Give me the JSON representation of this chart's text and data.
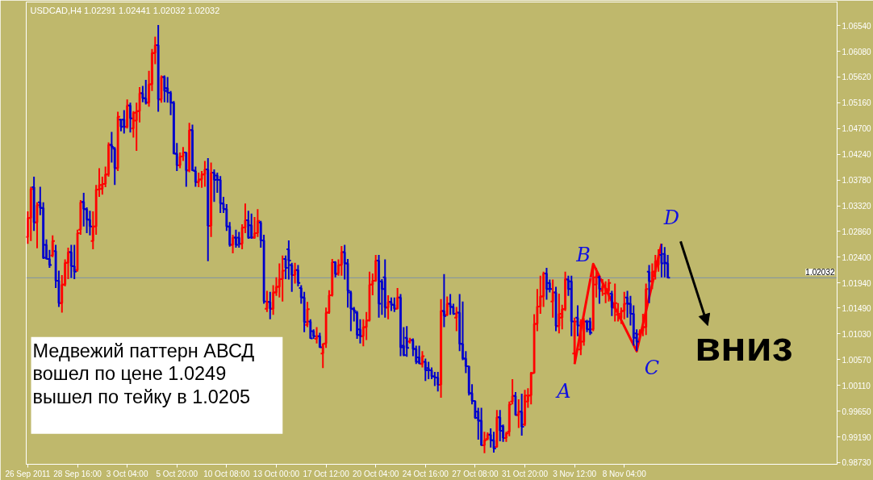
{
  "chart_data": {
    "type": "candlestick",
    "title": "USDCAD,H4 1.02291 1.02441 1.02032 1.02032",
    "categories": [
      "26 Sep 2011",
      null,
      null,
      null,
      null,
      null,
      null,
      null,
      null,
      null,
      null,
      null,
      null,
      null,
      null,
      null,
      "28 Sep 16:00",
      null,
      null,
      null,
      null,
      null,
      null,
      null,
      null,
      null,
      null,
      null,
      null,
      null,
      null,
      null,
      "3 Oct 04:00",
      null,
      null,
      null,
      null,
      null,
      null,
      null,
      null,
      null,
      null,
      null,
      null,
      null,
      null,
      null,
      "5 Oct 20:00",
      null,
      null,
      null,
      null,
      null,
      null,
      null,
      null,
      null,
      null,
      null,
      null,
      null,
      null,
      null,
      "10 Oct 08:00",
      null,
      null,
      null,
      null,
      null,
      null,
      null,
      null,
      null,
      null,
      null,
      null,
      null,
      null,
      null,
      "13 Oct 00:00",
      null,
      null,
      null,
      null,
      null,
      null,
      null,
      null,
      null,
      null,
      null,
      null,
      null,
      null,
      null,
      "17 Oct 12:00",
      null,
      null,
      null,
      null,
      null,
      null,
      null,
      null,
      null,
      null,
      null,
      null,
      null,
      null,
      null,
      "20 Oct 04:00",
      null,
      null,
      null,
      null,
      null,
      null,
      null,
      null,
      null,
      null,
      null,
      null,
      null,
      null,
      null,
      "24 Oct 16:00",
      null,
      null,
      null,
      null,
      null,
      null,
      null,
      null,
      null,
      null,
      null,
      null,
      null,
      null,
      null,
      "27 Oct 08:00",
      null,
      null,
      null,
      null,
      null,
      null,
      null,
      null,
      null,
      null,
      null,
      null,
      null,
      null,
      null,
      "31 Oct 20:00",
      null,
      null,
      null,
      null,
      null,
      null,
      null,
      null,
      null,
      null,
      null,
      null,
      null,
      null,
      null,
      "3 Nov 12:00",
      null,
      null,
      null,
      null,
      null,
      null,
      null,
      null,
      null,
      null,
      null,
      null,
      null,
      null,
      null,
      "8 Nov 04:00",
      null,
      null,
      null,
      null,
      null,
      null,
      null,
      null,
      null,
      null,
      null,
      null,
      null,
      null,
      null,
      null,
      null,
      null,
      null,
      null,
      null,
      null,
      null,
      null,
      null,
      null,
      null,
      null,
      null,
      null,
      null,
      null,
      null,
      null,
      null,
      null,
      null,
      null,
      null,
      null,
      null,
      null,
      null,
      null,
      null,
      null,
      null,
      null,
      null,
      null,
      null,
      null,
      null,
      null,
      null,
      null,
      null,
      null,
      null,
      null,
      null,
      null,
      null,
      null,
      null,
      null,
      null,
      null
    ],
    "ohlc": [
      [
        1.0276,
        1.0322,
        1.0264,
        1.031
      ],
      [
        1.031,
        1.0366,
        1.0269,
        1.0362
      ],
      [
        1.0365,
        1.0384,
        1.0287,
        1.0302
      ],
      [
        1.0302,
        1.0338,
        1.0256,
        1.0333
      ],
      [
        1.0338,
        1.0366,
        1.0315,
        1.0328
      ],
      [
        1.0328,
        1.0338,
        1.0237,
        1.0239
      ],
      [
        1.0262,
        1.0272,
        1.0236,
        1.0237
      ],
      [
        1.0237,
        1.0253,
        1.0221,
        1.0226
      ],
      [
        1.0243,
        1.0279,
        1.024,
        1.0269
      ],
      [
        1.0251,
        1.0262,
        1.0185,
        1.0198
      ],
      [
        1.0198,
        1.0216,
        1.0151,
        1.0158
      ],
      [
        1.0158,
        1.0208,
        1.0141,
        1.0191
      ],
      [
        1.0191,
        1.0236,
        1.0188,
        1.023
      ],
      [
        1.023,
        1.0257,
        1.0201,
        1.0249
      ],
      [
        1.0249,
        1.0262,
        1.0203,
        1.0224
      ],
      [
        1.0224,
        1.0262,
        1.0201,
        1.0214
      ],
      [
        1.0217,
        1.0289,
        1.0214,
        1.0283
      ],
      [
        1.0289,
        1.0342,
        1.028,
        1.0338
      ],
      [
        1.0339,
        1.0355,
        1.0295,
        1.0326
      ],
      [
        1.0326,
        1.0329,
        1.0283,
        1.0307
      ],
      [
        1.0307,
        1.0323,
        1.0279,
        1.0295
      ],
      [
        1.0269,
        1.0322,
        1.0254,
        1.0295
      ],
      [
        1.0295,
        1.0369,
        1.028,
        1.0361
      ],
      [
        1.0361,
        1.0399,
        1.0348,
        1.0369
      ],
      [
        1.0362,
        1.0384,
        1.0352,
        1.0371
      ],
      [
        1.0371,
        1.0402,
        1.0365,
        1.0388
      ],
      [
        1.0388,
        1.0445,
        1.0384,
        1.0441
      ],
      [
        1.0441,
        1.0464,
        1.0409,
        1.0437
      ],
      [
        1.0434,
        1.0437,
        1.0369,
        1.0399
      ],
      [
        1.0399,
        1.05,
        1.0394,
        1.0491
      ],
      [
        1.0486,
        1.0487,
        1.0465,
        1.0473
      ],
      [
        1.0486,
        1.0503,
        1.0461,
        1.0473
      ],
      [
        1.0473,
        1.0522,
        1.047,
        1.0511
      ],
      [
        1.0511,
        1.0516,
        1.0463,
        1.0488
      ],
      [
        1.047,
        1.0501,
        1.0454,
        1.0498
      ],
      [
        1.0484,
        1.0516,
        1.043,
        1.0501
      ],
      [
        1.0501,
        1.0544,
        1.0481,
        1.0533
      ],
      [
        1.0533,
        1.0546,
        1.0517,
        1.0524
      ],
      [
        1.0524,
        1.0557,
        1.0513,
        1.0516
      ],
      [
        1.0516,
        1.0573,
        1.0509,
        1.0549
      ],
      [
        1.0549,
        1.0612,
        1.0537,
        1.0605
      ],
      [
        1.0605,
        1.0634,
        1.0585,
        1.0619
      ],
      [
        1.0619,
        1.0655,
        1.05,
        1.0522
      ],
      [
        1.0522,
        1.0565,
        1.0516,
        1.0562
      ],
      [
        1.0562,
        1.0565,
        1.0517,
        1.0537
      ],
      [
        1.0542,
        1.0562,
        1.0516,
        1.0534
      ],
      [
        1.0534,
        1.0537,
        1.0494,
        1.0516
      ],
      [
        1.0516,
        1.0519,
        1.0424,
        1.0425
      ],
      [
        1.0425,
        1.0444,
        1.0394,
        1.0404
      ],
      [
        1.0404,
        1.0427,
        1.0399,
        1.042
      ],
      [
        1.042,
        1.0437,
        1.0412,
        1.0427
      ],
      [
        1.0427,
        1.0428,
        1.0366,
        1.0395
      ],
      [
        1.0395,
        1.048,
        1.0392,
        1.0467
      ],
      [
        1.0467,
        1.0477,
        1.0394,
        1.0395
      ],
      [
        1.0394,
        1.0402,
        1.0366,
        1.0374
      ],
      [
        1.0374,
        1.0391,
        1.0365,
        1.0379
      ],
      [
        1.0379,
        1.0394,
        1.0364,
        1.0388
      ],
      [
        1.0388,
        1.0412,
        1.0366,
        1.0397
      ],
      [
        1.0397,
        1.0417,
        1.0233,
        1.0296
      ],
      [
        1.0296,
        1.0409,
        1.0276,
        1.0391
      ],
      [
        1.0391,
        1.0397,
        1.0339,
        1.0378
      ],
      [
        1.0386,
        1.0391,
        1.0355,
        1.0378
      ],
      [
        1.0378,
        1.0385,
        1.0319,
        1.0336
      ],
      [
        1.0336,
        1.0348,
        1.0319,
        1.0326
      ],
      [
        1.0326,
        1.0335,
        1.0287,
        1.0295
      ],
      [
        1.0295,
        1.0303,
        1.0259,
        1.0262
      ],
      [
        1.0262,
        1.028,
        1.0247,
        1.0275
      ],
      [
        1.0275,
        1.0289,
        1.0257,
        1.0262
      ],
      [
        1.0275,
        1.0285,
        1.0257,
        1.0264
      ],
      [
        1.0264,
        1.0299,
        1.0254,
        1.0293
      ],
      [
        1.0293,
        1.0336,
        1.0283,
        1.0306
      ],
      [
        1.0306,
        1.0323,
        1.0273,
        1.0275
      ],
      [
        1.0297,
        1.0318,
        1.0273,
        1.0275
      ],
      [
        1.0275,
        1.0312,
        1.0273,
        1.0283
      ],
      [
        1.0283,
        1.0326,
        1.0276,
        1.0305
      ],
      [
        1.0302,
        1.0305,
        1.0257,
        1.027
      ],
      [
        1.027,
        1.028,
        1.0157,
        1.0161
      ],
      [
        1.0148,
        1.018,
        1.0142,
        1.016
      ],
      [
        1.016,
        1.0178,
        1.0129,
        1.0148
      ],
      [
        1.0148,
        1.019,
        1.0137,
        1.0177
      ],
      [
        1.0177,
        1.0204,
        1.0171,
        1.0187
      ],
      [
        1.0187,
        1.0229,
        1.0168,
        1.0201
      ],
      [
        1.0201,
        1.0243,
        1.0161,
        1.0216
      ],
      [
        1.0237,
        1.0243,
        1.0201,
        1.0221
      ],
      [
        1.0254,
        1.027,
        1.02,
        1.0234
      ],
      [
        1.0226,
        1.023,
        1.0178,
        1.0208
      ],
      [
        1.0208,
        1.023,
        1.0193,
        1.0217
      ],
      [
        1.0217,
        1.0226,
        1.0188,
        1.0194
      ],
      [
        1.0185,
        1.019,
        1.0157,
        1.0168
      ],
      [
        1.0168,
        1.0178,
        1.0106,
        1.0124
      ],
      [
        1.0119,
        1.016,
        1.0115,
        1.0147
      ],
      [
        1.0125,
        1.0129,
        1.0094,
        1.0095
      ],
      [
        1.0108,
        1.0111,
        1.0094,
        1.0099
      ],
      [
        1.0094,
        1.0115,
        1.0086,
        1.0099
      ],
      [
        1.0099,
        1.0105,
        1.0078,
        1.0079
      ],
      [
        1.0068,
        1.0086,
        1.0042,
        1.0085
      ],
      [
        1.0086,
        1.015,
        1.0078,
        1.0141
      ],
      [
        1.0141,
        1.0181,
        1.0139,
        1.0172
      ],
      [
        1.0172,
        1.0237,
        1.017,
        1.0231
      ],
      [
        1.0231,
        1.0233,
        1.0204,
        1.021
      ],
      [
        1.0211,
        1.0236,
        1.0207,
        1.0226
      ],
      [
        1.0226,
        1.026,
        1.0207,
        1.0249
      ],
      [
        1.0249,
        1.0262,
        1.02,
        1.0229
      ],
      [
        1.0229,
        1.0237,
        1.015,
        1.018
      ],
      [
        1.0177,
        1.018,
        1.0108,
        1.0148
      ],
      [
        1.0148,
        1.0151,
        1.0125,
        1.0144
      ],
      [
        1.0141,
        1.0144,
        1.0094,
        1.0101
      ],
      [
        1.0111,
        1.0129,
        1.0086,
        1.0099
      ],
      [
        1.0099,
        1.0129,
        1.0081,
        1.0115
      ],
      [
        1.0115,
        1.0142,
        1.0092,
        1.0127
      ],
      [
        1.0127,
        1.0214,
        1.0125,
        1.0191
      ],
      [
        1.0191,
        1.0211,
        1.0172,
        1.0198
      ],
      [
        1.0198,
        1.0244,
        1.0196,
        1.0234
      ],
      [
        1.0234,
        1.0244,
        1.0132,
        1.0157
      ],
      [
        1.0197,
        1.0201,
        1.0137,
        1.0183
      ],
      [
        1.0204,
        1.0236,
        1.0132,
        1.015
      ],
      [
        1.015,
        1.0172,
        1.0129,
        1.016
      ],
      [
        1.016,
        1.0168,
        1.0144,
        1.0155
      ],
      [
        1.0155,
        1.0168,
        1.0142,
        1.0148
      ],
      [
        1.0148,
        1.0185,
        1.0147,
        1.0168
      ],
      [
        1.0168,
        1.0174,
        1.0063,
        1.0079
      ],
      [
        1.0082,
        1.0115,
        1.0063,
        1.0065
      ],
      [
        1.0096,
        1.0117,
        1.0062,
        1.0078
      ],
      [
        1.0089,
        1.0096,
        1.0086,
        1.0092
      ],
      [
        1.0092,
        1.0095,
        1.0063,
        1.0076
      ],
      [
        1.0076,
        1.0082,
        1.0049,
        1.0053
      ],
      [
        1.0061,
        1.0082,
        1.0049,
        1.005
      ],
      [
        1.0049,
        1.0072,
        1.0043,
        1.0063
      ],
      [
        1.0053,
        1.0059,
        1.0019,
        1.0038
      ],
      [
        1.0042,
        1.0053,
        1.0022,
        1.0038
      ],
      [
        1.0038,
        1.0043,
        1.0022,
        1.0027
      ],
      [
        1.0027,
        1.0035,
        1.001,
        1.0025
      ],
      [
        1.0025,
        1.0035,
        1.0,
        1.0012
      ],
      [
        1.0012,
        1.0165,
        0.9989,
        1.0144
      ],
      [
        1.0144,
        1.021,
        1.0115,
        1.0135
      ],
      [
        1.0137,
        1.017,
        1.0135,
        1.0157
      ],
      [
        1.0157,
        1.0174,
        1.0137,
        1.0151
      ],
      [
        1.0151,
        1.0157,
        1.0137,
        1.0139
      ],
      [
        1.0132,
        1.0151,
        1.0108,
        1.0141
      ],
      [
        1.0141,
        1.0174,
        1.0072,
        1.0085
      ],
      [
        1.0085,
        1.0161,
        1.0056,
        1.0059
      ],
      [
        1.0059,
        1.0072,
        1.0033,
        1.0045
      ],
      [
        1.0045,
        1.0046,
        0.9993,
        0.9997
      ],
      [
        0.9997,
        1.0013,
        0.9977,
        0.9983
      ],
      [
        0.9983,
        0.9984,
        0.9951,
        0.9953
      ],
      [
        0.9964,
        0.9971,
        0.9914,
        0.9948
      ],
      [
        0.9948,
        0.9971,
        0.9903,
        0.9904
      ],
      [
        0.9904,
        0.9928,
        0.989,
        0.9913
      ],
      [
        0.9915,
        0.9927,
        0.9913,
        0.9923
      ],
      [
        0.9923,
        0.9934,
        0.99,
        0.9913
      ],
      [
        0.9913,
        0.9928,
        0.9891,
        0.9898
      ],
      [
        0.9901,
        0.9967,
        0.99,
        0.9954
      ],
      [
        0.9954,
        0.9967,
        0.9911,
        0.993
      ],
      [
        0.9938,
        0.9941,
        0.991,
        0.9917
      ],
      [
        0.9917,
        0.9928,
        0.991,
        0.9925
      ],
      [
        0.9928,
        0.9982,
        0.992,
        0.9977
      ],
      [
        0.9982,
        1.0022,
        0.9977,
        0.9992
      ],
      [
        0.9992,
        0.9999,
        0.9957,
        0.9958
      ],
      [
        0.9958,
        0.9986,
        0.9935,
        0.9964
      ],
      [
        0.9964,
        0.9996,
        0.9921,
        0.9937
      ],
      [
        0.9941,
        1.0003,
        0.9938,
        0.9993
      ],
      [
        0.9982,
        1.0006,
        0.9971,
        0.9993
      ],
      [
        0.9993,
        1.0035,
        0.9977,
        1.0033
      ],
      [
        1.0033,
        1.0138,
        1.0032,
        1.0121
      ],
      [
        1.0121,
        1.0183,
        1.0108,
        1.0152
      ],
      [
        1.0152,
        1.0207,
        1.0139,
        1.017
      ],
      [
        1.017,
        1.0214,
        1.0151,
        1.0211
      ],
      [
        1.0211,
        1.0221,
        1.0164,
        1.0183
      ],
      [
        1.0194,
        1.02,
        1.0177,
        1.0183
      ],
      [
        1.0161,
        1.02,
        1.0132,
        1.0177
      ],
      [
        1.0177,
        1.0187,
        1.0108,
        1.0117
      ],
      [
        1.0117,
        1.0175,
        1.0104,
        1.0139
      ],
      [
        1.0132,
        1.0155,
        1.0111,
        1.0147
      ],
      [
        1.0147,
        1.0214,
        1.0144,
        1.0201
      ],
      [
        1.02,
        1.0207,
        1.0171,
        1.0183
      ],
      [
        1.0197,
        1.0207,
        1.0099,
        1.0125
      ],
      [
        1.0068,
        1.0132,
        1.0049,
        1.0125
      ],
      [
        1.0132,
        1.0154,
        1.0099,
        1.0118
      ],
      [
        1.0075,
        1.0129,
        1.0065,
        1.0125
      ],
      [
        1.0089,
        1.0131,
        1.0082,
        1.0125
      ],
      [
        1.0125,
        1.0128,
        1.0106,
        1.0111
      ],
      [
        1.0125,
        1.0132,
        1.0101,
        1.0105
      ],
      [
        1.0111,
        1.0228,
        1.0108,
        1.0204
      ],
      [
        1.0191,
        1.0221,
        1.0168,
        1.0207
      ],
      [
        1.0204,
        1.0207,
        1.0157,
        1.0183
      ],
      [
        1.018,
        1.0201,
        1.0171,
        1.0188
      ],
      [
        1.0175,
        1.0197,
        1.0158,
        1.0183
      ],
      [
        1.018,
        1.0201,
        1.0161,
        1.0194
      ],
      [
        1.0175,
        1.018,
        1.0135,
        1.015
      ],
      [
        1.015,
        1.0193,
        1.0125,
        1.0158
      ],
      [
        1.0137,
        1.0158,
        1.0125,
        1.0139
      ],
      [
        1.0131,
        1.015,
        1.0121,
        1.0144
      ],
      [
        1.0144,
        1.0178,
        1.0129,
        1.0157
      ],
      [
        1.0168,
        1.018,
        1.0132,
        1.0157
      ],
      [
        1.0157,
        1.0171,
        1.0118,
        1.0139
      ],
      [
        1.0139,
        1.0154,
        1.0082,
        1.0096
      ],
      [
        1.0104,
        1.0111,
        1.0072,
        1.0089
      ],
      [
        1.0102,
        1.0111,
        1.0099,
        1.0108
      ],
      [
        1.0108,
        1.0139,
        1.0099,
        1.0115
      ],
      [
        1.0115,
        1.0193,
        1.0101,
        1.0183
      ],
      [
        1.0214,
        1.0226,
        1.0158,
        1.0197
      ],
      [
        1.0197,
        1.0229,
        1.0183,
        1.0214
      ],
      [
        1.0214,
        1.0244,
        1.02,
        1.0233
      ],
      [
        1.0226,
        1.0254,
        1.0214,
        1.0244
      ],
      [
        1.0244,
        1.0264,
        1.0204,
        1.0229
      ],
      [
        1.0246,
        1.0258,
        1.0204,
        1.023
      ],
      [
        1.02291,
        1.02441,
        1.02032,
        1.02032
      ],
      null,
      null,
      null,
      null,
      null,
      null,
      null,
      null,
      null,
      null,
      null,
      null,
      null,
      null,
      null,
      null,
      null,
      null,
      null,
      null,
      null,
      null,
      null,
      null,
      null,
      null,
      null,
      null,
      null,
      null,
      null,
      null,
      null,
      null,
      null,
      null,
      null,
      null,
      null,
      null,
      null,
      null,
      null,
      null,
      null,
      null,
      null,
      null,
      null,
      null,
      null,
      null,
      null,
      null
    ],
    "colors": [
      "#ff0000",
      "#ff0000",
      "#0000cc",
      "#ff0000",
      "#0000cc",
      "#0000cc",
      "#0000cc",
      "#0000cc",
      "#ff0000",
      "#0000cc",
      "#0000cc",
      "#ff0000",
      "#ff0000",
      "#ff0000",
      "#0000cc",
      "#0000cc",
      "#ff0000",
      "#ff0000",
      "#0000cc",
      "#0000cc",
      "#0000cc",
      "#ff0000",
      "#ff0000",
      "#ff0000",
      "#ff0000",
      "#ff0000",
      "#ff0000",
      "#0000cc",
      "#0000cc",
      "#ff0000",
      "#0000cc",
      "#0000cc",
      "#ff0000",
      "#0000cc",
      "#ff0000",
      "#ff0000",
      "#ff0000",
      "#0000cc",
      "#0000cc",
      "#ff0000",
      "#ff0000",
      "#ff0000",
      "#0000cc",
      "#ff0000",
      "#0000cc",
      "#0000cc",
      "#0000cc",
      "#0000cc",
      "#0000cc",
      "#ff0000",
      "#ff0000",
      "#0000cc",
      "#ff0000",
      "#0000cc",
      "#0000cc",
      "#ff0000",
      "#ff0000",
      "#ff0000",
      "#0000cc",
      "#ff0000",
      "#0000cc",
      "#0000cc",
      "#0000cc",
      "#0000cc",
      "#0000cc",
      "#0000cc",
      "#ff0000",
      "#0000cc",
      "#0000cc",
      "#ff0000",
      "#ff0000",
      "#0000cc",
      "#0000cc",
      "#ff0000",
      "#ff0000",
      "#0000cc",
      "#0000cc",
      "#ff0000",
      "#0000cc",
      "#ff0000",
      "#ff0000",
      "#ff0000",
      "#ff0000",
      "#0000cc",
      "#0000cc",
      "#0000cc",
      "#ff0000",
      "#0000cc",
      "#0000cc",
      "#0000cc",
      "#ff0000",
      "#0000cc",
      "#0000cc",
      "#ff0000",
      "#0000cc",
      "#ff0000",
      "#ff0000",
      "#ff0000",
      "#ff0000",
      "#0000cc",
      "#ff0000",
      "#ff0000",
      "#0000cc",
      "#0000cc",
      "#0000cc",
      "#0000cc",
      "#0000cc",
      "#0000cc",
      "#ff0000",
      "#ff0000",
      "#ff0000",
      "#ff0000",
      "#ff0000",
      "#0000cc",
      "#0000cc",
      "#0000cc",
      "#ff0000",
      "#0000cc",
      "#0000cc",
      "#ff0000",
      "#0000cc",
      "#0000cc",
      "#0000cc",
      "#ff0000",
      "#0000cc",
      "#0000cc",
      "#0000cc",
      "#ff0000",
      "#0000cc",
      "#0000cc",
      "#0000cc",
      "#0000cc",
      "#0000cc",
      "#ff0000",
      "#0000cc",
      "#ff0000",
      "#0000cc",
      "#0000cc",
      "#ff0000",
      "#0000cc",
      "#0000cc",
      "#0000cc",
      "#0000cc",
      "#0000cc",
      "#0000cc",
      "#0000cc",
      "#0000cc",
      "#ff0000",
      "#ff0000",
      "#0000cc",
      "#0000cc",
      "#ff0000",
      "#0000cc",
      "#0000cc",
      "#ff0000",
      "#ff0000",
      "#ff0000",
      "#0000cc",
      "#ff0000",
      "#0000cc",
      "#ff0000",
      "#ff0000",
      "#ff0000",
      "#ff0000",
      "#ff0000",
      "#ff0000",
      "#ff0000",
      "#0000cc",
      "#0000cc",
      "#ff0000",
      "#0000cc",
      "#ff0000",
      "#ff0000",
      "#ff0000",
      "#0000cc",
      "#0000cc",
      "#ff0000",
      "#0000cc",
      "#ff0000",
      "#ff0000",
      "#0000cc",
      "#0000cc",
      "#ff0000",
      "#ff0000",
      "#0000cc",
      "#ff0000",
      "#ff0000",
      "#ff0000",
      "#0000cc",
      "#ff0000",
      "#ff0000",
      "#ff0000",
      "#ff0000",
      "#0000cc",
      "#0000cc",
      "#0000cc",
      "#0000cc",
      "#ff0000",
      "#ff0000",
      "#ff0000",
      "#0000cc",
      "#ff0000",
      "#ff0000",
      "#ff0000",
      "#0000cc",
      "#0000cc",
      "#0000cc",
      null,
      null,
      null,
      null,
      null,
      null,
      null,
      null,
      null,
      null,
      null,
      null,
      null,
      null,
      null,
      null,
      null,
      null,
      null,
      null,
      null,
      null,
      null,
      null,
      null,
      null,
      null,
      null,
      null,
      null,
      null,
      null,
      null,
      null,
      null,
      null,
      null,
      null,
      null,
      null,
      null,
      null,
      null,
      null,
      null,
      null,
      null,
      null,
      null,
      null,
      null,
      null,
      null,
      null
    ],
    "series": [
      {
        "type": "line",
        "color": "#ff0000",
        "values": [
          null,
          null,
          null,
          null,
          null,
          null,
          null,
          null,
          null,
          null,
          null,
          null,
          null,
          null,
          null,
          null,
          null,
          null,
          null,
          null,
          null,
          null,
          null,
          null,
          null,
          null,
          null,
          null,
          null,
          null,
          null,
          null,
          null,
          null,
          null,
          null,
          null,
          null,
          null,
          null,
          null,
          null,
          null,
          null,
          null,
          null,
          null,
          null,
          null,
          null,
          null,
          null,
          null,
          null,
          null,
          null,
          null,
          null,
          null,
          null,
          null,
          null,
          null,
          null,
          null,
          null,
          null,
          null,
          null,
          null,
          null,
          null,
          null,
          null,
          null,
          null,
          null,
          null,
          null,
          null,
          null,
          null,
          null,
          null,
          null,
          null,
          null,
          null,
          null,
          null,
          null,
          null,
          null,
          null,
          null,
          null,
          null,
          null,
          null,
          null,
          null,
          null,
          null,
          null,
          null,
          null,
          null,
          null,
          null,
          null,
          null,
          null,
          null,
          null,
          null,
          null,
          null,
          null,
          null,
          null,
          null,
          null,
          null,
          null,
          null,
          null,
          null,
          null,
          null,
          null,
          null,
          null,
          null,
          null,
          null,
          null,
          null,
          null,
          null,
          null,
          null,
          null,
          null,
          null,
          null,
          null,
          null,
          null,
          null,
          null,
          null,
          null,
          null,
          null,
          null,
          null,
          null,
          null,
          null,
          null,
          null,
          null,
          null,
          null,
          null,
          null,
          null,
          null,
          null,
          null,
          null,
          null,
          null,
          null,
          null,
          null,
          1.0049,
          null,
          null,
          null,
          null,
          null,
          1.0228,
          null,
          null,
          null,
          null,
          null,
          null,
          null,
          null,
          null,
          null,
          null,
          null,
          null,
          1.0072,
          null,
          null,
          null,
          null,
          null,
          null,
          null,
          1.0264,
          null,
          null,
          null,
          null,
          null,
          null,
          null,
          null,
          null,
          null,
          null,
          null,
          null,
          null,
          null,
          null,
          null,
          null,
          null,
          null,
          null,
          null,
          null,
          null,
          null,
          null,
          null,
          null,
          null,
          null,
          null,
          null,
          null,
          null,
          null,
          null,
          null,
          null,
          null,
          null,
          null,
          null,
          null,
          null,
          null,
          null,
          null,
          null,
          null,
          null,
          null,
          null,
          null,
          null,
          null,
          null
        ]
      }
    ],
    "ylim": [
      0.987,
      1.0696
    ],
    "yticks": [
      {
        "value": 1.0654,
        "label": "1.06540"
      },
      {
        "value": 1.0608,
        "label": "1.06080"
      },
      {
        "value": 1.0562,
        "label": "1.05620"
      },
      {
        "value": 1.0516,
        "label": "1.05160"
      },
      {
        "value": 1.047,
        "label": "1.04700"
      },
      {
        "value": 1.0424,
        "label": "1.04240"
      },
      {
        "value": 1.0378,
        "label": "1.03780"
      },
      {
        "value": 1.0332,
        "label": "1.03320"
      },
      {
        "value": 1.0286,
        "label": "1.02860"
      },
      {
        "value": 1.024,
        "label": "1.02400"
      },
      {
        "value": 1.0194,
        "label": "1.01940"
      },
      {
        "value": 1.0149,
        "label": "1.01490"
      },
      {
        "value": 1.0103,
        "label": "1.01030"
      },
      {
        "value": 1.0057,
        "label": "1.00570"
      },
      {
        "value": 1.0011,
        "label": "1.00110"
      },
      {
        "value": 0.9965,
        "label": "0.99650"
      },
      {
        "value": 0.9919,
        "label": "0.99190"
      },
      {
        "value": 0.9873,
        "label": "0.98730"
      }
    ],
    "ref_lines": [
      {
        "axis": "y",
        "value": 1.02032,
        "label": "1.02032",
        "color": "#7f93a8"
      }
    ],
    "annotations": [
      "A",
      "B",
      "C",
      "D",
      "Медвежий паттерн АВСД\nвошел по цене 1.0249\nвышел по тейку в 1.0205",
      "вниз"
    ]
  }
}
